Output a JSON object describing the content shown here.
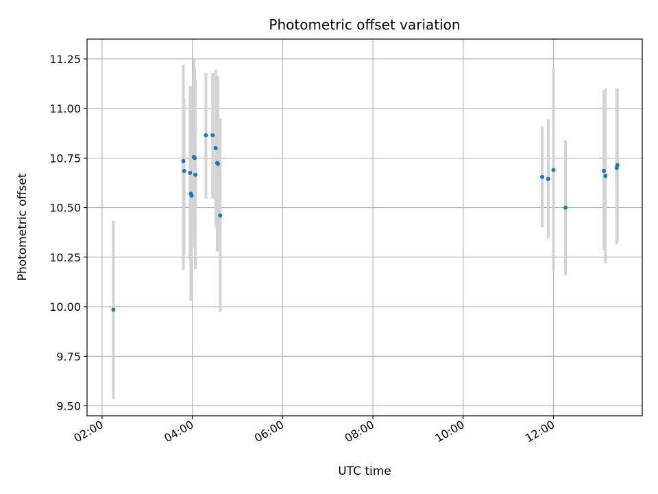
{
  "chart_data": {
    "type": "scatter",
    "title": "Photometric offset variation",
    "xlabel": "UTC time",
    "ylabel": "Photometric offset",
    "xlim": [
      "01:40",
      "13:58"
    ],
    "ylim": [
      9.45,
      11.35
    ],
    "grid": true,
    "x_ticks": [
      "02:00",
      "04:00",
      "06:00",
      "08:00",
      "10:00",
      "12:00"
    ],
    "y_ticks": [
      "9.50",
      "9.75",
      "10.00",
      "10.25",
      "10.50",
      "10.75",
      "11.00",
      "11.25"
    ],
    "colors": {
      "point": "#1f77b4",
      "error_bar": "#d3d3d3",
      "grid": "#b0b0b0"
    },
    "points": [
      {
        "x": "02:15",
        "y": 9.985,
        "ylow": 9.535,
        "yhigh": 10.435
      },
      {
        "x": "03:48",
        "y": 10.735,
        "ylow": 10.185,
        "yhigh": 11.22
      },
      {
        "x": "03:49",
        "y": 10.685,
        "ylow": 10.265,
        "yhigh": 11.05
      },
      {
        "x": "03:57",
        "y": 10.675,
        "ylow": 10.235,
        "yhigh": 11.115
      },
      {
        "x": "03:58",
        "y": 10.57,
        "ylow": 10.03,
        "yhigh": 11.115
      },
      {
        "x": "03:59",
        "y": 10.56,
        "ylow": 10.24,
        "yhigh": 10.88
      },
      {
        "x": "04:02",
        "y": 10.755,
        "ylow": 10.36,
        "yhigh": 11.255
      },
      {
        "x": "04:03",
        "y": 10.75,
        "ylow": 10.3,
        "yhigh": 11.2
      },
      {
        "x": "04:04",
        "y": 10.665,
        "ylow": 10.19,
        "yhigh": 11.145
      },
      {
        "x": "04:18",
        "y": 10.865,
        "ylow": 10.545,
        "yhigh": 11.18
      },
      {
        "x": "04:27",
        "y": 10.865,
        "ylow": 10.545,
        "yhigh": 11.18
      },
      {
        "x": "04:31",
        "y": 10.8,
        "ylow": 10.4,
        "yhigh": 11.195
      },
      {
        "x": "04:33",
        "y": 10.725,
        "ylow": 10.28,
        "yhigh": 11.165
      },
      {
        "x": "04:34",
        "y": 10.72,
        "ylow": 10.28,
        "yhigh": 11.16
      },
      {
        "x": "04:37",
        "y": 10.46,
        "ylow": 9.975,
        "yhigh": 10.95
      },
      {
        "x": "11:45",
        "y": 10.655,
        "ylow": 10.4,
        "yhigh": 10.91
      },
      {
        "x": "11:53",
        "y": 10.645,
        "ylow": 10.345,
        "yhigh": 10.945
      },
      {
        "x": "12:00",
        "y": 10.69,
        "ylow": 10.18,
        "yhigh": 11.205
      },
      {
        "x": "12:16",
        "y": 10.5,
        "ylow": 10.16,
        "yhigh": 10.84
      },
      {
        "x": "13:07",
        "y": 10.685,
        "ylow": 10.285,
        "yhigh": 11.09
      },
      {
        "x": "13:09",
        "y": 10.66,
        "ylow": 10.22,
        "yhigh": 11.1
      },
      {
        "x": "13:24",
        "y": 10.7,
        "ylow": 10.315,
        "yhigh": 11.1
      },
      {
        "x": "13:25",
        "y": 10.715,
        "ylow": 10.33,
        "yhigh": 11.1
      }
    ]
  }
}
